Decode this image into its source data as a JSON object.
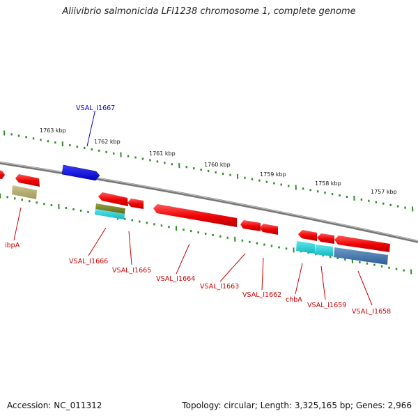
{
  "title": "Aliivibrio salmonicida LFI1238 chromosome 1, complete genome",
  "footer": {
    "accession": "Accession: NC_011312",
    "summary": "Topology: circular; Length: 3,325,165 bp; Genes: 2,966"
  },
  "colors": {
    "backbone": "#8a8a8a",
    "tick": "#2e8b22",
    "gene_forward": "#ff0000",
    "gene_forward_label": "#0000cc",
    "gene_reverse": "#ff0000",
    "gene_label": "#cc0000"
  },
  "kbp_labels": [
    "1763 kbp",
    "1762 kbp",
    "1761 kbp",
    "1760 kbp",
    "1759 kbp",
    "1758 kbp",
    "1757 kbp"
  ],
  "genes": [
    {
      "label": "VSAL_I1667",
      "strand": "forward",
      "color": "#0000ff"
    },
    {
      "label": "ibpA",
      "strand": "reverse",
      "color": "#ff0000"
    },
    {
      "label": "VSAL_I1666",
      "strand": "reverse",
      "color": "#ff0000"
    },
    {
      "label": "VSAL_I1665",
      "strand": "reverse",
      "color": "#ff0000"
    },
    {
      "label": "VSAL_I1664",
      "strand": "reverse",
      "color": "#ff0000"
    },
    {
      "label": "VSAL_I1663",
      "strand": "reverse",
      "color": "#ff0000"
    },
    {
      "label": "VSAL_I1662",
      "strand": "reverse",
      "color": "#ff0000"
    },
    {
      "label": "chbA",
      "strand": "reverse",
      "color": "#ff0000"
    },
    {
      "label": "VSAL_I1659",
      "strand": "reverse",
      "color": "#ff0000"
    },
    {
      "label": "VSAL_I1658",
      "strand": "reverse",
      "color": "#ff0000"
    }
  ]
}
